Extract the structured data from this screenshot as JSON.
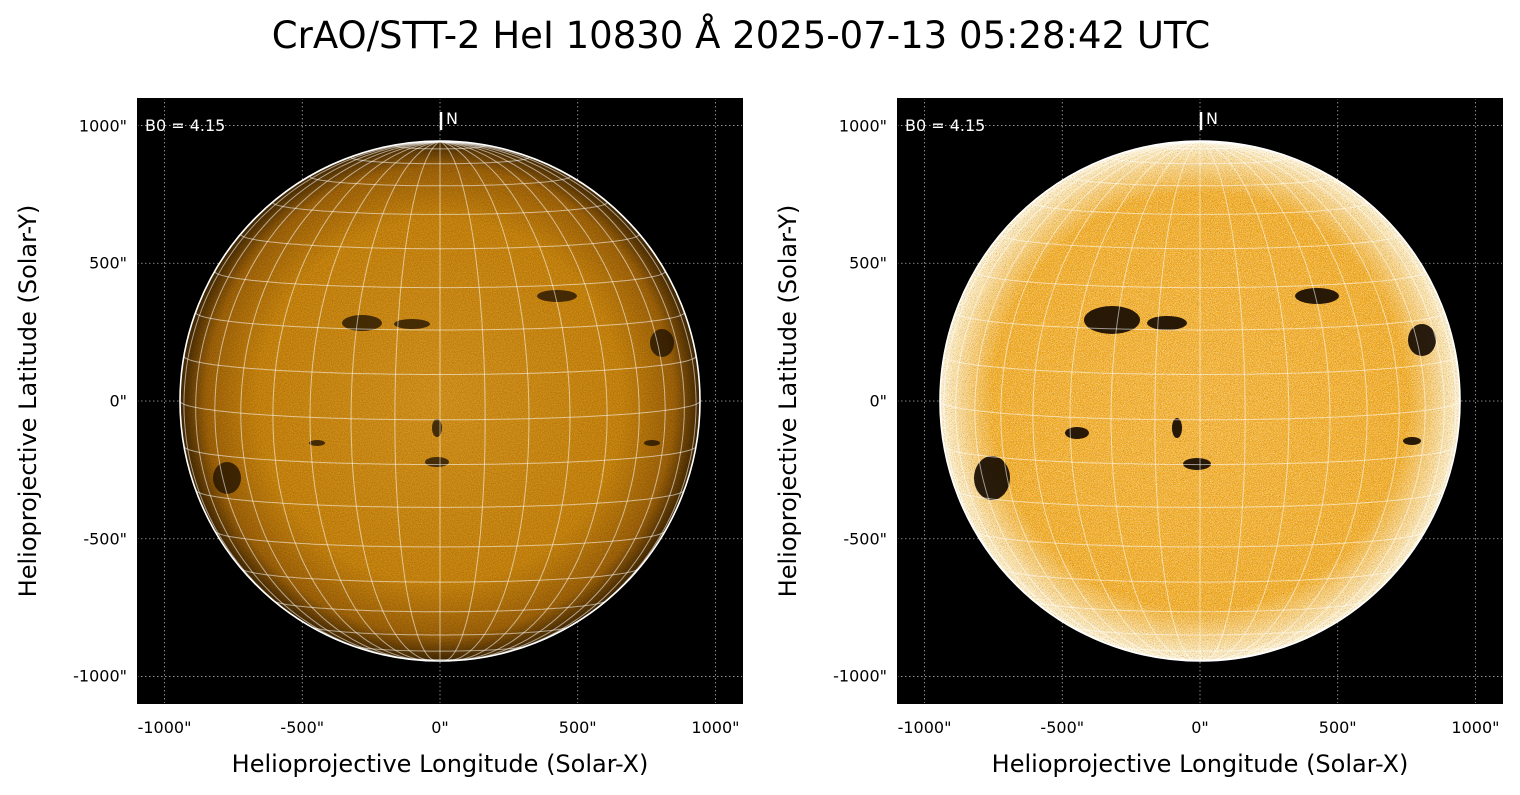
{
  "title": "CrAO/STT-2 HeI 10830 Å 2025-07-13 05:28:42 UTC",
  "panels": [
    {
      "id": "left",
      "b0_text": "B0 = 4.15",
      "north_label": "N",
      "xlabel": "Helioprojective Longitude (Solar-X)",
      "ylabel": "Helioprojective Latitude (Solar-Y)",
      "rendering": "standard"
    },
    {
      "id": "right",
      "b0_text": "B0 = 4.15",
      "north_label": "N",
      "xlabel": "Helioprojective Longitude (Solar-X)",
      "ylabel": "Helioprojective Latitude (Solar-Y)",
      "rendering": "enhanced-contrast"
    }
  ],
  "axes": {
    "xlim": [
      -1100,
      1100
    ],
    "ylim": [
      -1100,
      1100
    ],
    "xticks": [
      {
        "value": -1000,
        "label": "-1000\""
      },
      {
        "value": -500,
        "label": "-500\""
      },
      {
        "value": 0,
        "label": "0\""
      },
      {
        "value": 500,
        "label": "500\""
      },
      {
        "value": 1000,
        "label": "1000\""
      }
    ],
    "yticks": [
      {
        "value": 1000,
        "label": "1000\""
      },
      {
        "value": 500,
        "label": "500\""
      },
      {
        "value": 0,
        "label": "0\""
      },
      {
        "value": -500,
        "label": "-500\""
      },
      {
        "value": -1000,
        "label": "-1000\""
      }
    ],
    "grid": true
  },
  "solar_disk": {
    "radius_arcsec": 944,
    "color_center": "#f2a013",
    "color_limb": "#3a2300",
    "background": "#000000"
  }
}
